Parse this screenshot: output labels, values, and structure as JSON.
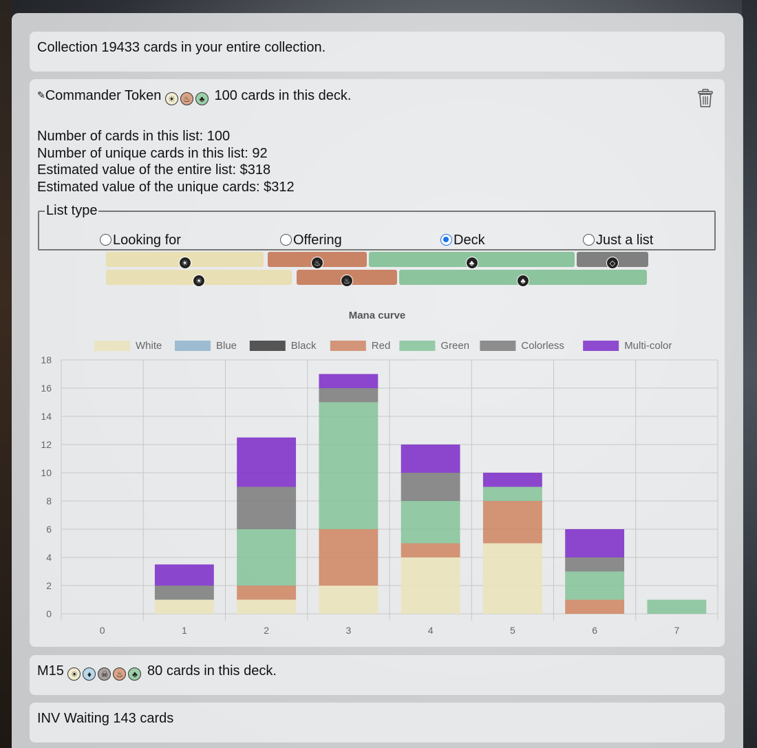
{
  "collection": {
    "title": "Collection",
    "summary": "19433 cards in your entire collection."
  },
  "deck": {
    "edit_icon": "pencil-icon",
    "name": "Commander Token",
    "summary": "100 cards in this deck.",
    "colors": [
      "white",
      "red",
      "green"
    ],
    "delete_icon": "trash-icon",
    "stats": [
      "Number of cards in this list: 100",
      "Number of unique cards in this list: 92",
      "Estimated value of the entire list: $318",
      "Estimated value of the unique cards: $312"
    ],
    "list_type": {
      "legend": "List type",
      "options": [
        "Looking for",
        "Offering",
        "Deck",
        "Just a list"
      ],
      "selected": "Deck"
    },
    "color_bars_top": [
      {
        "color": "white",
        "hex": "#e8dfb4",
        "share": 0.29
      },
      {
        "color": "red",
        "hex": "#c98466",
        "share": 0.18
      },
      {
        "color": "green",
        "hex": "#8cc49d",
        "share": 0.39
      },
      {
        "color": "colorless",
        "hex": "#808080",
        "share": 0.14
      }
    ],
    "color_bars_bottom": [
      {
        "color": "white",
        "hex": "#e8dfb4",
        "share": 0.34
      },
      {
        "color": "red",
        "hex": "#c98466",
        "share": 0.19
      },
      {
        "color": "green",
        "hex": "#8cc49d",
        "share": 0.47
      }
    ]
  },
  "chart_data": {
    "type": "bar",
    "stacked": true,
    "title": "Mana curve",
    "categories": [
      "0",
      "1",
      "2",
      "3",
      "4",
      "5",
      "6",
      "7"
    ],
    "ylim": [
      0,
      18
    ],
    "yticks": [
      0,
      2,
      4,
      6,
      8,
      10,
      12,
      14,
      16,
      18
    ],
    "grid": true,
    "legend_position": "top",
    "series": [
      {
        "name": "White",
        "color": "#ebe3bb",
        "values": [
          0,
          1,
          1,
          2,
          4,
          5,
          0,
          0
        ]
      },
      {
        "name": "Blue",
        "color": "#8fb4cd",
        "values": [
          0,
          0,
          0,
          0,
          0,
          0,
          0,
          0
        ]
      },
      {
        "name": "Black",
        "color": "#3b3b3b",
        "values": [
          0,
          0,
          0,
          0,
          0,
          0,
          0,
          0
        ]
      },
      {
        "name": "Red",
        "color": "#cf8664",
        "values": [
          0,
          0,
          1,
          4,
          1,
          3,
          1,
          0
        ]
      },
      {
        "name": "Green",
        "color": "#86c49a",
        "values": [
          0,
          0,
          4,
          9,
          3,
          1,
          2,
          1
        ]
      },
      {
        "name": "Colorless",
        "color": "#7d7d7d",
        "values": [
          0,
          1,
          3,
          1,
          2,
          0,
          1,
          0
        ]
      },
      {
        "name": "Multi-color",
        "color": "#7e2fc9",
        "values": [
          0,
          1.5,
          3.5,
          1,
          2,
          1,
          2,
          0
        ]
      }
    ]
  },
  "other_decks": [
    {
      "name": "M15",
      "colors": [
        "white",
        "blue",
        "black",
        "red",
        "green"
      ],
      "summary": "80 cards in this deck."
    },
    {
      "name": "INV Waiting",
      "colors": [],
      "summary": "143 cards"
    }
  ]
}
